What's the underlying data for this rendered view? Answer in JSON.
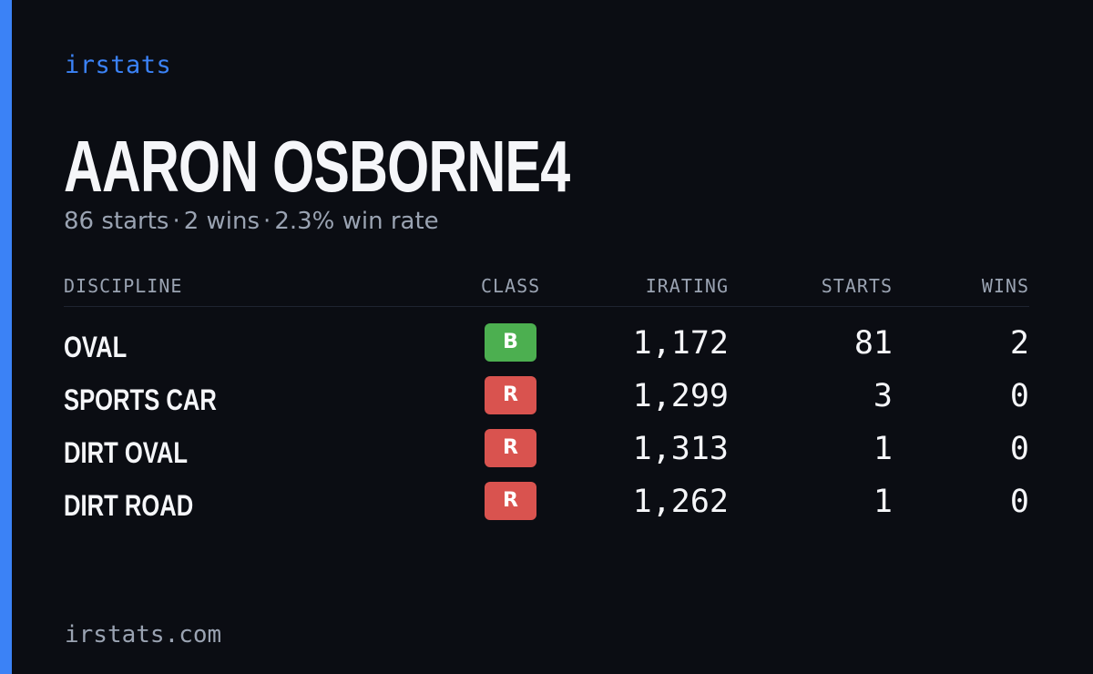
{
  "brand": "irstats",
  "driver": {
    "name": "AARON OSBORNE4",
    "summary": {
      "starts": "86 starts",
      "wins": "2 wins",
      "win_rate": "2.3% win rate",
      "separator": "·"
    }
  },
  "table": {
    "headers": {
      "discipline": "DISCIPLINE",
      "class": "CLASS",
      "irating": "IRATING",
      "starts": "STARTS",
      "wins": "WINS"
    },
    "rows": [
      {
        "discipline": "OVAL",
        "class": "B",
        "class_color": "#4caf50",
        "irating": "1,172",
        "starts": "81",
        "wins": "2"
      },
      {
        "discipline": "SPORTS CAR",
        "class": "R",
        "class_color": "#d9534f",
        "irating": "1,299",
        "starts": "3",
        "wins": "0"
      },
      {
        "discipline": "DIRT OVAL",
        "class": "R",
        "class_color": "#d9534f",
        "irating": "1,313",
        "starts": "1",
        "wins": "0"
      },
      {
        "discipline": "DIRT ROAD",
        "class": "R",
        "class_color": "#d9534f",
        "irating": "1,262",
        "starts": "1",
        "wins": "0"
      }
    ]
  },
  "footer": "irstats.com",
  "colors": {
    "accent": "#3b82f6",
    "background": "#0b0d13"
  }
}
